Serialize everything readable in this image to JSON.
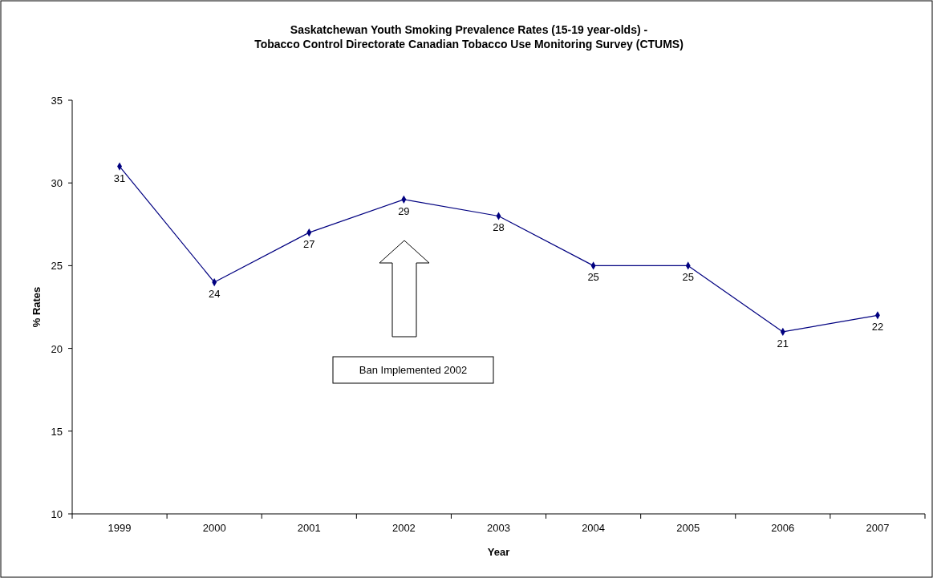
{
  "chart_data": {
    "type": "line",
    "title": "Saskatchewan Youth Smoking Prevalence Rates (15-19 year-olds) -\nTobacco Control Directorate Canadian Tobacco Use Monitoring Survey (CTUMS)",
    "xlabel": "Year",
    "ylabel": "% Rates",
    "categories": [
      "1999",
      "2000",
      "2001",
      "2002",
      "2003",
      "2004",
      "2005",
      "2006",
      "2007"
    ],
    "series": [
      {
        "color": "#000080",
        "values": [
          31,
          24,
          27,
          29,
          28,
          25,
          25,
          21,
          22
        ]
      }
    ],
    "ylim": [
      10,
      35
    ],
    "yticks": [
      10,
      15,
      20,
      25,
      30,
      35
    ],
    "marker": "diamond",
    "data_labels": true,
    "annotations": [
      "Ban Implemented 2002"
    ]
  }
}
